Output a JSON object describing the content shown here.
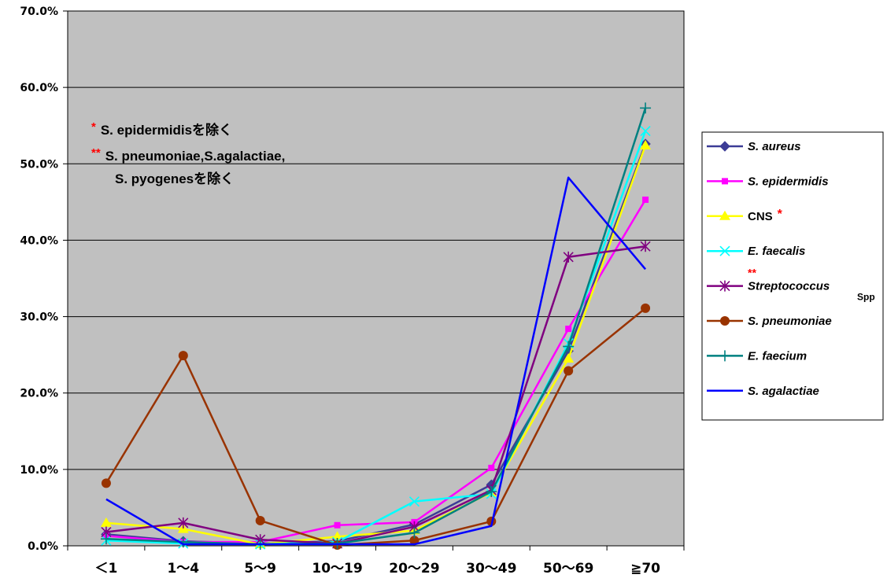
{
  "chart_data": {
    "type": "line",
    "categories": [
      "＜1",
      "1～4",
      "5～9",
      "10～19",
      "20～29",
      "30～49",
      "50～69",
      "≧70"
    ],
    "ylim": [
      0,
      70
    ],
    "y_ticks": [
      "0.0%",
      "10.0%",
      "20.0%",
      "30.0%",
      "40.0%",
      "50.0%",
      "60.0%",
      "70.0%"
    ],
    "grid": true,
    "legend_position": "right",
    "plot_background": "#c0c0c0",
    "annotations": [
      {
        "mark": "*",
        "text": "S. epidermidisを除く"
      },
      {
        "mark": "**",
        "text": "S. pneumoniae,S.agalactiae,"
      },
      {
        "mark": "",
        "text": "S. pyogenesを除く"
      }
    ],
    "series": [
      {
        "name": "S. aureus",
        "italic": true,
        "color": "#3c3c96",
        "marker": "diamond",
        "values": [
          1.5,
          0.6,
          0.3,
          0.6,
          2.8,
          8.0,
          25.5,
          52.6
        ]
      },
      {
        "name": "S. epidermidis",
        "italic": true,
        "color": "#ff00ff",
        "marker": "square",
        "values": [
          1.3,
          0.5,
          0.5,
          2.7,
          3.1,
          10.2,
          28.4,
          45.3
        ]
      },
      {
        "name": "CNS",
        "note": "*",
        "italic": false,
        "color": "#ffff00",
        "marker": "triangle",
        "values": [
          3.0,
          2.2,
          0.2,
          1.2,
          2.0,
          7.0,
          24.5,
          52.4
        ]
      },
      {
        "name": "E. faecalis",
        "italic": true,
        "color": "#00ffff",
        "marker": "x",
        "values": [
          0.7,
          0.3,
          0.2,
          0.5,
          5.8,
          6.8,
          26.5,
          54.3
        ]
      },
      {
        "name": "Streptococcus",
        "note": "**",
        "suffix": "Spp",
        "italic": true,
        "color": "#800080",
        "marker": "star",
        "values": [
          1.8,
          3.0,
          0.8,
          0.3,
          2.5,
          7.3,
          37.8,
          39.2
        ]
      },
      {
        "name": "S. pneumoniae",
        "italic": true,
        "color": "#993300",
        "marker": "circle",
        "values": [
          8.2,
          24.9,
          3.3,
          0.1,
          0.7,
          3.2,
          22.9,
          31.1
        ]
      },
      {
        "name": "E. faecium",
        "italic": true,
        "color": "#008080",
        "marker": "plus",
        "values": [
          0.9,
          0.5,
          0.2,
          0.3,
          1.7,
          7.1,
          26.1,
          57.3
        ]
      },
      {
        "name": "S. agalactiae",
        "italic": true,
        "color": "#0000ff",
        "marker": "none",
        "values": [
          6.1,
          0.2,
          0.2,
          0.2,
          0.2,
          2.6,
          48.2,
          36.2
        ]
      }
    ]
  }
}
